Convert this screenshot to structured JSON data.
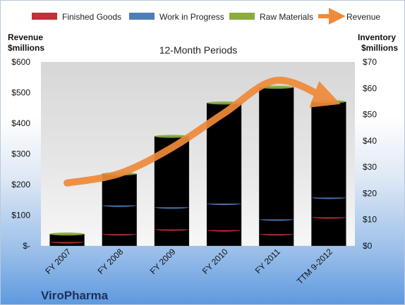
{
  "chart_data": {
    "type": "bar",
    "stacked": true,
    "title": "12-Month Periods",
    "company": "ViroPharma",
    "categories": [
      "FY 2007",
      "FY 2008",
      "FY 2009",
      "FY 2010",
      "FY 2011",
      "TTM 9-2012"
    ],
    "series": [
      {
        "name": "Finished Goods",
        "axis": "right",
        "color": "#c0313a",
        "values": [
          1.5,
          4.5,
          6.3,
          6.0,
          4.5,
          10.9
        ]
      },
      {
        "name": "Work in Progress",
        "axis": "right",
        "color": "#4f7dba",
        "values": [
          0.0,
          10.9,
          8.4,
          10.1,
          5.6,
          7.5
        ]
      },
      {
        "name": "Raw Materials",
        "axis": "right",
        "color": "#89ad3d",
        "values": [
          3.0,
          12.0,
          27.0,
          38.3,
          50.3,
          36.5
        ]
      }
    ],
    "line_series": {
      "name": "Revenue",
      "axis": "left",
      "color": "#ef8a3a",
      "values": [
        205,
        236,
        320,
        433,
        540,
        477
      ]
    },
    "left_axis": {
      "title_line1": "Revenue",
      "title_line2": "$millions",
      "ylim": [
        0,
        600
      ],
      "ticks": [
        "$-",
        "$100",
        "$200",
        "$300",
        "$400",
        "$500",
        "$600"
      ]
    },
    "right_axis": {
      "title_line1": "Inventory",
      "title_line2": "$millions",
      "ylim": [
        0,
        70
      ],
      "ticks": [
        "$0",
        "$10",
        "$20",
        "$30",
        "$40",
        "$50",
        "$60",
        "$70"
      ]
    },
    "legend_position": "top",
    "grid": false
  }
}
